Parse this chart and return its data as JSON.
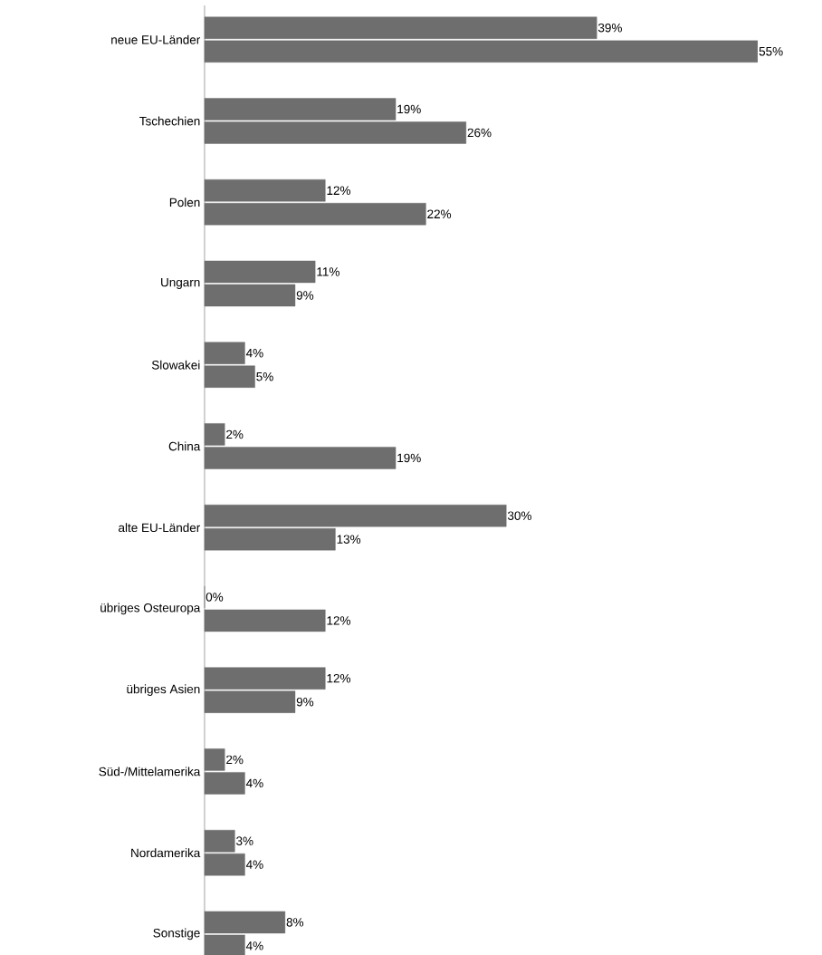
{
  "chart_data": {
    "type": "bar",
    "orientation": "horizontal",
    "categories": [
      "neue EU-Länder",
      "Tschechien",
      "Polen",
      "Ungarn",
      "Slowakei",
      "China",
      "alte EU-Länder",
      "übriges Osteuropa",
      "übriges Asien",
      "Süd-/Mittelamerika",
      "Nordamerika",
      "Sonstige"
    ],
    "series": [
      {
        "color": "#6e6e6e",
        "values": [
          39,
          19,
          12,
          11,
          4,
          2,
          30,
          0,
          12,
          2,
          3,
          8
        ],
        "value_labels": [
          "39%",
          "19%",
          "12%",
          "11%",
          "4%",
          "2%",
          "30%",
          "0%",
          "12%",
          "2%",
          "3%",
          "8%"
        ]
      },
      {
        "color": "#6e6e6e",
        "values": [
          55,
          26,
          22,
          9,
          5,
          19,
          13,
          12,
          9,
          4,
          4,
          4
        ],
        "value_labels": [
          "55%",
          "26%",
          "22%",
          "9%",
          "5%",
          "19%",
          "13%",
          "12%",
          "9%",
          "4%",
          "4%",
          "4%"
        ]
      }
    ],
    "grid": false
  }
}
